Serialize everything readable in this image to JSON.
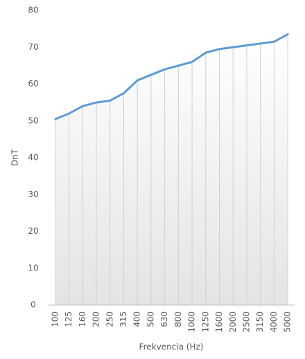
{
  "chart_data": {
    "type": "line",
    "x_label": "Frekvencia (Hz)",
    "y_label": "DnT",
    "categories": [
      "100",
      "125",
      "160",
      "200",
      "250",
      "315",
      "400",
      "500",
      "630",
      "800",
      "1000",
      "1250",
      "1600",
      "2000",
      "2500",
      "3150",
      "4000",
      "5000"
    ],
    "values": [
      50.5,
      52,
      54,
      55,
      55.5,
      57.5,
      61,
      62.5,
      64,
      65,
      66,
      68.5,
      69.5,
      70,
      70.5,
      71,
      71.5,
      73.5
    ],
    "color": "#5b9bd5",
    "ylim": [
      0,
      80
    ],
    "yticks": [
      0,
      10,
      20,
      30,
      40,
      50,
      60,
      70,
      80
    ]
  }
}
